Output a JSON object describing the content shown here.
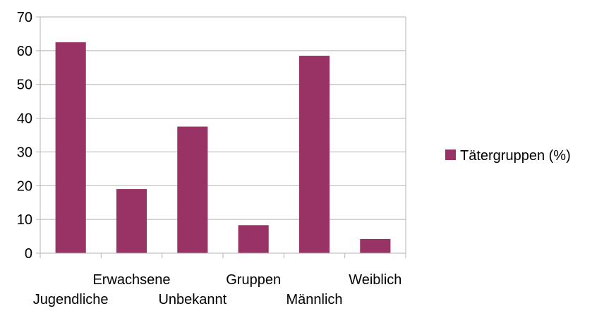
{
  "chart_data": {
    "type": "bar",
    "categories": [
      "Jugendliche",
      "Erwachsene",
      "Unbekannt",
      "Gruppen",
      "Männlich",
      "Weiblich"
    ],
    "series": [
      {
        "name": "Tätergruppen (%)",
        "values": [
          62.5,
          19,
          37.5,
          8.3,
          58.5,
          4.2
        ],
        "color": "#993366"
      }
    ],
    "ylim": [
      0,
      70
    ],
    "yticks": [
      0,
      10,
      20,
      30,
      40,
      50,
      60,
      70
    ],
    "grid": true,
    "legend": "right",
    "colors": {
      "bar": "#993366",
      "grid": "#b3b3b3",
      "axis": "#b3b3b3"
    }
  }
}
